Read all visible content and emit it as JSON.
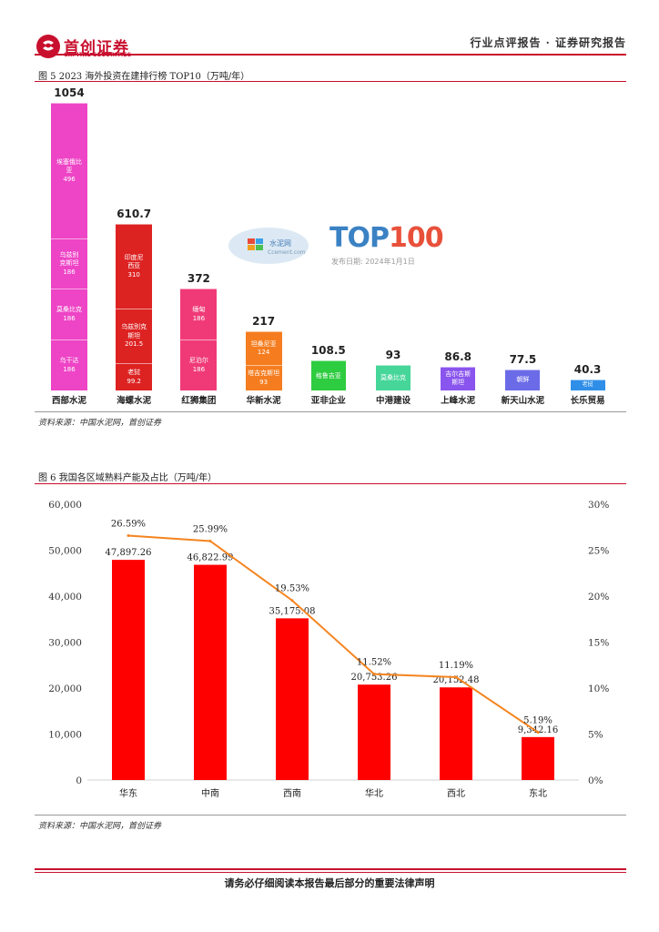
{
  "header": {
    "logo_text": "首创证券",
    "logo_sub": "CAPITAL SECURITIES",
    "report_type": "行业点评报告 · 证券研究报告"
  },
  "figure5": {
    "title": "图 5 2023 海外投资在建排行榜 TOP10（万吨/年）",
    "source": "资料来源：中国水泥网，首创证券",
    "watermark": {
      "top": "TOP100",
      "cn": "水泥网",
      "site": "Ccement.com",
      "date": "发布日期: 2024年1月1日"
    },
    "companies": [
      {
        "name": "西部水泥",
        "total": "1054",
        "segments": [
          {
            "label": "乌干达",
            "value": "186",
            "color": "#ee44c6"
          },
          {
            "label": "莫桑比克",
            "value": "186",
            "color": "#ee44c6"
          },
          {
            "label": "乌兹别克斯坦",
            "display": "乌兹别\n克斯坦",
            "value": "186",
            "color": "#ee44c6"
          },
          {
            "label": "埃塞俄比亚",
            "display": "埃塞俄比\n亚",
            "value": "496",
            "color": "#ee44c6"
          }
        ]
      },
      {
        "name": "海螺水泥",
        "total": "610.7",
        "segments": [
          {
            "label": "老挝",
            "value": "99.2",
            "color": "#dd2222"
          },
          {
            "label": "乌兹别克斯坦",
            "display": "乌兹别克\n斯坦",
            "value": "201.5",
            "color": "#dd2222"
          },
          {
            "label": "印度尼西亚",
            "display": "印度尼\n西亚",
            "value": "310",
            "color": "#dd2222"
          }
        ]
      },
      {
        "name": "红狮集团",
        "total": "372",
        "segments": [
          {
            "label": "尼泊尔",
            "value": "186",
            "color": "#f03a78"
          },
          {
            "label": "缅甸",
            "value": "186",
            "color": "#f03a78"
          }
        ]
      },
      {
        "name": "华新水泥",
        "total": "217",
        "segments": [
          {
            "label": "塔吉克斯坦",
            "value": "93",
            "color": "#f57d1f"
          },
          {
            "label": "坦桑尼亚",
            "value": "124",
            "color": "#f57d1f"
          }
        ]
      },
      {
        "name": "亚非企业",
        "total": "108.5",
        "segments": [
          {
            "label": "格鲁吉亚",
            "value": "",
            "color": "#2ecc40"
          }
        ]
      },
      {
        "name": "中港建设",
        "total": "93",
        "segments": [
          {
            "label": "莫桑比克",
            "value": "",
            "color": "#46d69a"
          }
        ]
      },
      {
        "name": "上峰水泥",
        "total": "86.8",
        "segments": [
          {
            "label": "吉尔吉斯斯坦",
            "display": "吉尔吉斯\n斯坦",
            "value": "",
            "color": "#8a55ee"
          }
        ]
      },
      {
        "name": "新天山水泥",
        "total": "77.5",
        "segments": [
          {
            "label": "朝鲜",
            "value": "",
            "color": "#6b6be8"
          }
        ]
      },
      {
        "name": "长乐贸易",
        "total": "40.3",
        "segments": [
          {
            "label": "老挝",
            "value": "",
            "color": "#2f8fe8"
          }
        ]
      }
    ]
  },
  "figure6": {
    "title": "图 6 我国各区域熟料产能及占比（万吨/年）",
    "source": "资料来源：中国水泥网，首创证券",
    "chart_data": {
      "type": "bar",
      "title": "我国各区域熟料产能及占比（万吨/年）",
      "categories": [
        "华东",
        "中南",
        "西南",
        "华北",
        "西北",
        "东北"
      ],
      "series": [
        {
          "name": "熟料产能（万吨/年）",
          "type": "bar",
          "axis": "left",
          "values": [
            47897.26,
            46822.99,
            35175.08,
            20753.26,
            20152.48,
            9342.16
          ],
          "labels": [
            "47,897.26",
            "46,822.99",
            "35,175.08",
            "20,753.26",
            "20,152.48",
            "9,342.16"
          ],
          "color": "#ff0000"
        },
        {
          "name": "占比",
          "type": "line",
          "axis": "right",
          "values": [
            26.59,
            25.99,
            19.53,
            11.52,
            11.19,
            5.19
          ],
          "labels": [
            "26.59%",
            "25.99%",
            "19.53%",
            "11.52%",
            "11.19%",
            "5.19%"
          ],
          "color": "#f5841f"
        }
      ],
      "ylim": [
        0,
        60000
      ],
      "yticks": [
        "0",
        "10,000",
        "20,000",
        "30,000",
        "40,000",
        "50,000",
        "60,000"
      ],
      "y2lim": [
        0,
        30
      ],
      "y2ticks": [
        "0%",
        "5%",
        "10%",
        "15%",
        "20%",
        "25%",
        "30%"
      ],
      "grid": false
    }
  },
  "footer": {
    "disclaimer": "请务必仔细阅读本报告最后部分的重要法律声明"
  }
}
